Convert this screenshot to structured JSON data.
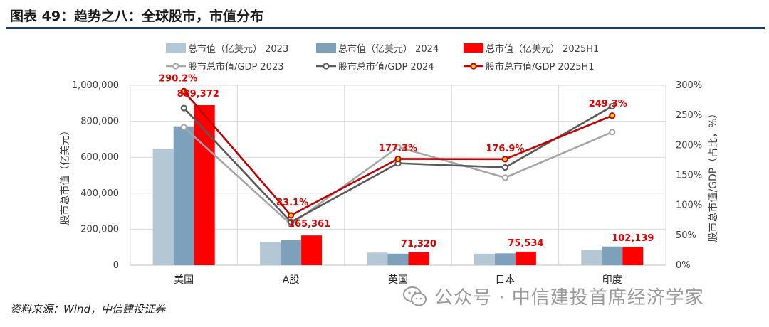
{
  "header": {
    "title": "图表 49：趋势之八：全球股市，市值分布"
  },
  "source": "资料来源：Wind，中信建投证券",
  "watermark": "公众号 · 中信建投首席经济学家",
  "chart_data": {
    "type": "bar",
    "categories": [
      "美国",
      "A股",
      "英国",
      "日本",
      "印度"
    ],
    "series": [
      {
        "name": "总市值（亿美元） 2023",
        "type": "bar",
        "axis": "left",
        "color": "#b4c7d5",
        "values": [
          648000,
          128000,
          70000,
          64000,
          85000
        ]
      },
      {
        "name": "总市值（亿美元） 2024",
        "type": "bar",
        "axis": "left",
        "color": "#7ea1bb",
        "values": [
          772000,
          140000,
          64000,
          66000,
          104000
        ]
      },
      {
        "name": "总市值（亿美元） 2025H1",
        "type": "bar",
        "axis": "left",
        "color": "#ff0000",
        "values": [
          889372,
          165361,
          71320,
          75534,
          102139
        ]
      },
      {
        "name": "股市总市值/GDP 2023",
        "type": "line",
        "axis": "right",
        "color": "#a6a6a6",
        "values": [
          230,
          68,
          197,
          146,
          222
        ]
      },
      {
        "name": "股市总市值/GDP 2024",
        "type": "line",
        "axis": "right",
        "color": "#595959",
        "values": [
          262,
          72,
          170,
          163,
          265
        ]
      },
      {
        "name": "股市总市值/GDP 2025H1",
        "type": "line",
        "axis": "right",
        "color": "#c00000",
        "values": [
          290.2,
          83.1,
          177.3,
          176.9,
          249.3
        ]
      }
    ],
    "bar_labels": [
      "889,372",
      "165,361",
      "71,320",
      "75,534",
      "102,139"
    ],
    "line_labels": [
      "290.2%",
      "83.1%",
      "177.3%",
      "176.9%",
      "249.3%"
    ],
    "left_axis": {
      "label": "股市总市值（亿美元）",
      "ylim": [
        0,
        1000000
      ],
      "ticks": [
        0,
        200000,
        400000,
        600000,
        800000,
        1000000
      ],
      "tick_labels": [
        "0",
        "200,000",
        "400,000",
        "600,000",
        "800,000",
        "1,000,000"
      ]
    },
    "right_axis": {
      "label": "股市总市值/GDP（占比，%）",
      "ylim": [
        0,
        300
      ],
      "ticks": [
        0,
        50,
        100,
        150,
        200,
        250,
        300
      ],
      "tick_labels": [
        "0%",
        "50%",
        "100%",
        "150%",
        "200%",
        "250%",
        "300%"
      ]
    },
    "grid": true,
    "legend": "top"
  }
}
